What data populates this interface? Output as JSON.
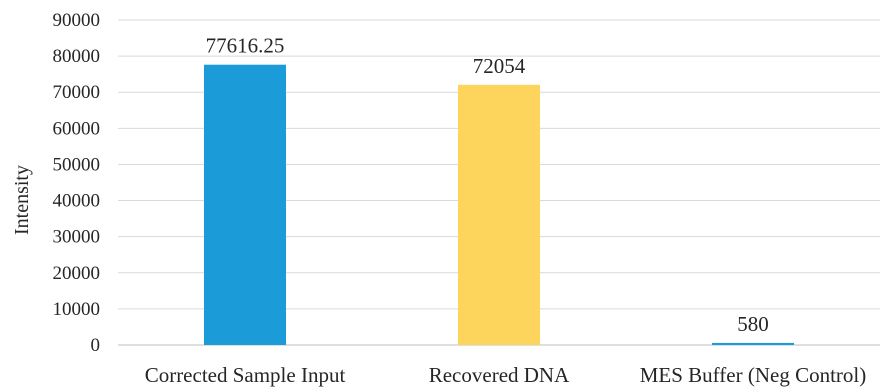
{
  "chart_data": {
    "type": "bar",
    "title": "",
    "xlabel": "",
    "ylabel": "Intensity",
    "ylim": [
      0,
      90000
    ],
    "yticks": [
      0,
      10000,
      20000,
      30000,
      40000,
      50000,
      60000,
      70000,
      80000,
      90000
    ],
    "ytick_labels": [
      "0",
      "10000",
      "20000",
      "30000",
      "40000",
      "50000",
      "60000",
      "70000",
      "80000",
      "90000"
    ],
    "grid": true,
    "legend": "none",
    "categories": [
      "Corrected Sample Input",
      "Recovered DNA",
      "MES Buffer (Neg Control)"
    ],
    "values": [
      77616.25,
      72054,
      580
    ],
    "data_labels": [
      "77616.25",
      "72054",
      "580"
    ],
    "colors": [
      "#1b9bd7",
      "#fdd55c",
      "#1b9bd7"
    ]
  }
}
